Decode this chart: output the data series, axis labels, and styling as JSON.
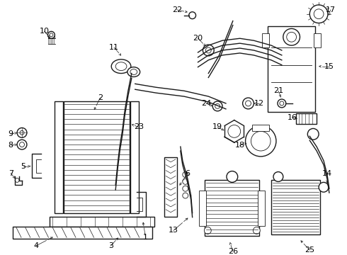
{
  "background": "#ffffff",
  "line_color": "#1a1a1a",
  "text_color": "#000000",
  "fig_width": 4.9,
  "fig_height": 3.6,
  "dpi": 100
}
